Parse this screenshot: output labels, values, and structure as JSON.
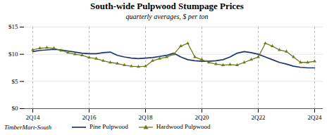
{
  "chart_data": {
    "type": "line",
    "title": "South-wide Pulpwood Stumpage Prices",
    "subtitle": "quarterly averages, $ per ton",
    "caption": "TimberMart-South",
    "categories": [
      "2Q14",
      null,
      null,
      null,
      null,
      null,
      null,
      null,
      "2Q16",
      null,
      null,
      null,
      null,
      null,
      null,
      null,
      "2Q18",
      null,
      null,
      null,
      null,
      null,
      null,
      null,
      "2Q20",
      null,
      null,
      null,
      null,
      null,
      null,
      null,
      "2Q22",
      null,
      null,
      null,
      null,
      null,
      null,
      null,
      "2Q24"
    ],
    "series": [
      {
        "name": "Pine Pulpwood",
        "color": "#1f3768",
        "values": [
          10.5,
          10.7,
          10.8,
          10.9,
          10.8,
          10.6,
          10.4,
          10.2,
          10.1,
          10.1,
          10.3,
          10.4,
          9.8,
          9.5,
          9.3,
          9.2,
          9.3,
          9.4,
          9.6,
          9.8,
          10.2,
          9.5,
          9.0,
          8.8,
          8.7,
          8.7,
          8.8,
          9.0,
          9.5,
          10.2,
          10.5,
          10.3,
          10.0,
          9.5,
          9.0,
          8.5,
          8.2,
          7.8,
          7.6,
          7.5,
          7.5
        ]
      },
      {
        "name": "Hardwood Pulpwood",
        "color": "#6b7a1e",
        "marker": "triangle",
        "values": [
          10.8,
          11.1,
          11.2,
          11.1,
          10.7,
          10.3,
          10.0,
          9.8,
          9.4,
          9.2,
          8.8,
          8.5,
          8.3,
          8.0,
          7.8,
          7.7,
          7.8,
          8.8,
          9.2,
          9.5,
          10.0,
          11.5,
          12.0,
          9.5,
          9.0,
          8.5,
          8.2,
          8.0,
          8.1,
          8.0,
          8.5,
          9.0,
          9.5,
          12.0,
          11.5,
          10.8,
          10.5,
          9.5,
          8.5,
          8.5,
          8.7
        ]
      }
    ],
    "ylim": [
      0,
      15
    ],
    "yticks": [
      {
        "value": 0,
        "label": "$0"
      },
      {
        "value": 5,
        "label": "$5"
      },
      {
        "value": 10,
        "label": "$10"
      },
      {
        "value": 15,
        "label": "$15"
      }
    ],
    "grid": true,
    "legend": "bottom"
  }
}
